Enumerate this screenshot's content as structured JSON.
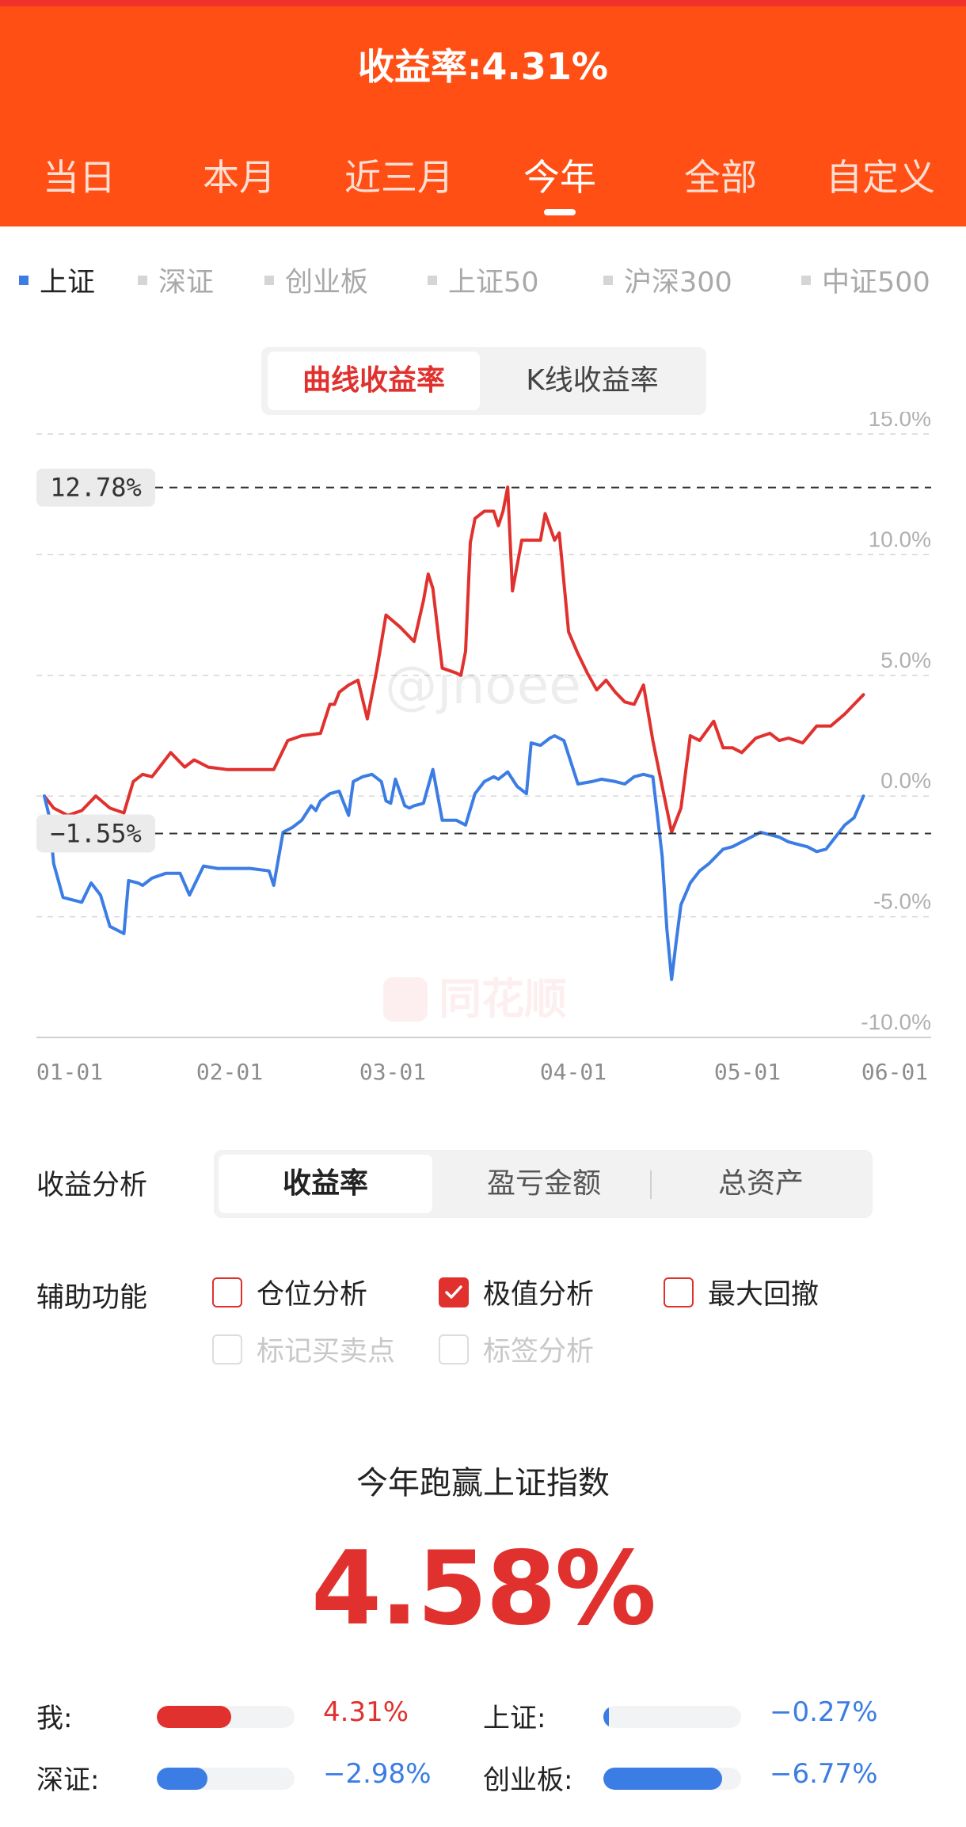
{
  "header": {
    "title": "收益率:4.31%",
    "tabs": [
      "当日",
      "本月",
      "近三月",
      "今年",
      "全部",
      "自定义"
    ],
    "active_tab": 3
  },
  "indices": {
    "items": [
      "上证",
      "深证",
      "创业板",
      "上证50",
      "沪深300",
      "中证500"
    ],
    "active": 0
  },
  "chart_toggle": {
    "options": [
      "曲线收益率",
      "K线收益率"
    ],
    "active": 0
  },
  "chart_data": {
    "type": "line",
    "y_ticks": [
      "15.0%",
      "10.0%",
      "5.0%",
      "0.0%",
      "-5.0%",
      "-10.0%"
    ],
    "x_ticks": [
      "01-01",
      "02-01",
      "03-01",
      "04-01",
      "05-01",
      "06-01"
    ],
    "ylim": [
      -10,
      15
    ],
    "markers": [
      {
        "label": "12.78%",
        "value": 12.78
      },
      {
        "label": "−1.55%",
        "value": -1.55
      }
    ],
    "watermark_text": "@jnoee",
    "logo_text": "同花顺",
    "colors": {
      "mine": "#e0312e",
      "index": "#3b7de4"
    },
    "series": [
      {
        "color": "#e0312e",
        "points": [
          [
            1,
            0.0
          ],
          [
            3,
            -0.5
          ],
          [
            6,
            -0.8
          ],
          [
            9,
            -0.6
          ],
          [
            12,
            0.0
          ],
          [
            15,
            -0.5
          ],
          [
            18,
            -0.7
          ],
          [
            20,
            0.6
          ],
          [
            22,
            0.9
          ],
          [
            24,
            0.8
          ],
          [
            26,
            1.3
          ],
          [
            28,
            1.8
          ],
          [
            31,
            1.2
          ],
          [
            33,
            1.5
          ],
          [
            36,
            1.2
          ],
          [
            40,
            1.1
          ],
          [
            45,
            1.1
          ],
          [
            50,
            1.1
          ],
          [
            53,
            2.3
          ],
          [
            56,
            2.5
          ],
          [
            60,
            2.6
          ],
          [
            62,
            3.8
          ],
          [
            63,
            3.8
          ],
          [
            64,
            4.3
          ],
          [
            66,
            4.6
          ],
          [
            68,
            4.8
          ],
          [
            70,
            3.2
          ],
          [
            72,
            5.2
          ],
          [
            74,
            7.5
          ],
          [
            77,
            7.0
          ],
          [
            80,
            6.4
          ],
          [
            82,
            8.1
          ],
          [
            83,
            9.2
          ],
          [
            84,
            8.6
          ],
          [
            86,
            5.3
          ],
          [
            89,
            5.1
          ],
          [
            90,
            5.0
          ],
          [
            91,
            6.0
          ],
          [
            92,
            10.5
          ],
          [
            93,
            11.5
          ],
          [
            95,
            11.8
          ],
          [
            97,
            11.8
          ],
          [
            98,
            11.2
          ],
          [
            99,
            11.8
          ],
          [
            100,
            12.8
          ],
          [
            101,
            8.5
          ],
          [
            103,
            10.6
          ],
          [
            107,
            10.6
          ],
          [
            108,
            11.7
          ],
          [
            110,
            10.6
          ],
          [
            111,
            10.9
          ],
          [
            113,
            6.8
          ],
          [
            115,
            5.9
          ],
          [
            117,
            5.1
          ],
          [
            119,
            4.4
          ],
          [
            121,
            4.8
          ],
          [
            123,
            4.3
          ],
          [
            125,
            3.9
          ],
          [
            127,
            3.8
          ],
          [
            129,
            4.6
          ],
          [
            131,
            2.3
          ],
          [
            133,
            0.4
          ],
          [
            135,
            -1.5
          ],
          [
            137,
            -0.5
          ],
          [
            139,
            2.5
          ],
          [
            141,
            2.3
          ],
          [
            144,
            3.1
          ],
          [
            146,
            2.0
          ],
          [
            148,
            2.0
          ],
          [
            150,
            1.8
          ],
          [
            153,
            2.4
          ],
          [
            156,
            2.6
          ],
          [
            158,
            2.3
          ],
          [
            160,
            2.4
          ],
          [
            163,
            2.2
          ],
          [
            166,
            2.9
          ],
          [
            169,
            2.9
          ],
          [
            172,
            3.4
          ],
          [
            174,
            3.8
          ],
          [
            176,
            4.2
          ]
        ]
      },
      {
        "color": "#3b7de4",
        "points": [
          [
            1,
            0.0
          ],
          [
            2,
            -0.8
          ],
          [
            3,
            -2.8
          ],
          [
            5,
            -4.2
          ],
          [
            7,
            -4.3
          ],
          [
            9,
            -4.4
          ],
          [
            11,
            -3.6
          ],
          [
            13,
            -4.1
          ],
          [
            15,
            -5.4
          ],
          [
            18,
            -5.7
          ],
          [
            19,
            -3.5
          ],
          [
            21,
            -3.6
          ],
          [
            22,
            -3.7
          ],
          [
            24,
            -3.4
          ],
          [
            27,
            -3.2
          ],
          [
            30,
            -3.2
          ],
          [
            32,
            -4.1
          ],
          [
            33,
            -3.7
          ],
          [
            35,
            -2.9
          ],
          [
            38,
            -3.0
          ],
          [
            45,
            -3.0
          ],
          [
            49,
            -3.1
          ],
          [
            50,
            -3.7
          ],
          [
            52,
            -1.5
          ],
          [
            54,
            -1.3
          ],
          [
            56,
            -1.0
          ],
          [
            58,
            -0.4
          ],
          [
            59,
            -0.6
          ],
          [
            60,
            -0.2
          ],
          [
            62,
            0.1
          ],
          [
            64,
            0.2
          ],
          [
            66,
            -0.8
          ],
          [
            67,
            0.6
          ],
          [
            69,
            0.8
          ],
          [
            71,
            0.9
          ],
          [
            73,
            0.6
          ],
          [
            74,
            -0.2
          ],
          [
            75,
            -0.3
          ],
          [
            76,
            0.7
          ],
          [
            78,
            -0.4
          ],
          [
            79,
            -0.5
          ],
          [
            80,
            -0.4
          ],
          [
            82,
            -0.3
          ],
          [
            84,
            1.1
          ],
          [
            86,
            -1.0
          ],
          [
            89,
            -1.0
          ],
          [
            91,
            -1.2
          ],
          [
            93,
            0.1
          ],
          [
            95,
            0.6
          ],
          [
            97,
            0.8
          ],
          [
            98,
            0.7
          ],
          [
            100,
            1.0
          ],
          [
            102,
            0.4
          ],
          [
            104,
            0.1
          ],
          [
            105,
            2.2
          ],
          [
            107,
            2.1
          ],
          [
            109,
            2.4
          ],
          [
            110,
            2.5
          ],
          [
            112,
            2.3
          ],
          [
            115,
            0.5
          ],
          [
            118,
            0.6
          ],
          [
            120,
            0.7
          ],
          [
            123,
            0.6
          ],
          [
            125,
            0.5
          ],
          [
            127,
            0.8
          ],
          [
            129,
            0.9
          ],
          [
            131,
            0.8
          ],
          [
            133,
            -2.5
          ],
          [
            134,
            -5.5
          ],
          [
            135,
            -7.6
          ],
          [
            136,
            -6.0
          ],
          [
            137,
            -4.5
          ],
          [
            139,
            -3.6
          ],
          [
            141,
            -3.1
          ],
          [
            143,
            -2.8
          ],
          [
            145,
            -2.4
          ],
          [
            146,
            -2.2
          ],
          [
            148,
            -2.1
          ],
          [
            150,
            -1.9
          ],
          [
            152,
            -1.7
          ],
          [
            154,
            -1.5
          ],
          [
            156,
            -1.6
          ],
          [
            158,
            -1.7
          ],
          [
            160,
            -1.9
          ],
          [
            162,
            -2.0
          ],
          [
            164,
            -2.1
          ],
          [
            166,
            -2.3
          ],
          [
            168,
            -2.2
          ],
          [
            170,
            -1.7
          ],
          [
            172,
            -1.2
          ],
          [
            174,
            -0.9
          ],
          [
            176,
            0.0
          ]
        ]
      }
    ]
  },
  "analysis": {
    "label": "收益分析",
    "tabs": [
      "收益率",
      "盈亏金额",
      "总资产"
    ],
    "active": 0
  },
  "aux": {
    "label": "辅助功能",
    "options": [
      "仓位分析",
      "极值分析",
      "最大回撤"
    ],
    "checked": [
      false,
      true,
      false
    ],
    "disabled_options": [
      "标记买卖点",
      "标签分析"
    ]
  },
  "summary": {
    "title": "今年跑赢上证指数",
    "value": "4.58%"
  },
  "compare": [
    {
      "label": "我:",
      "value": "4.31%",
      "fill": 0.54,
      "color": "#e0312e"
    },
    {
      "label": "上证:",
      "value": "−0.27%",
      "fill": 0.04,
      "color": "#3b7de4"
    },
    {
      "label": "深证:",
      "value": "−2.98%",
      "fill": 0.37,
      "color": "#3b7de4"
    },
    {
      "label": "创业板:",
      "value": "−6.77%",
      "fill": 0.86,
      "color": "#3b7de4"
    }
  ]
}
